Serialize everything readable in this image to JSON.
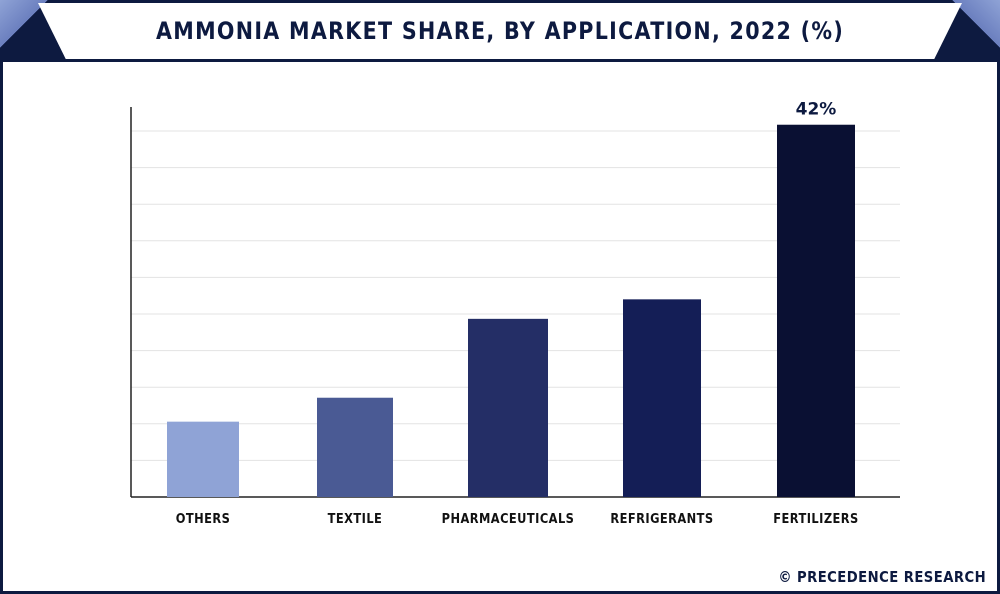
{
  "chart_data": {
    "type": "bar",
    "title": "AMMONIA MARKET SHARE, BY APPLICATION, 2022 (%)",
    "categories": [
      "OTHERS",
      "TEXTILE",
      "PHARMACEUTICALS",
      "REFRIGERANTS",
      "FERTILIZERS"
    ],
    "values": [
      8.5,
      11.2,
      20.1,
      22.3,
      42
    ],
    "data_labels": [
      "",
      "",
      "",
      "",
      "42%"
    ],
    "colors": [
      "#8fa3d6",
      "#4a5a94",
      "#242e66",
      "#141e56",
      "#0a1033"
    ],
    "xlabel": "",
    "ylabel": "",
    "ylim": [
      0,
      44
    ],
    "grid": true,
    "gridline_count": 10,
    "legend": "none"
  },
  "watermark": "© PRECEDENCE RESEARCH"
}
